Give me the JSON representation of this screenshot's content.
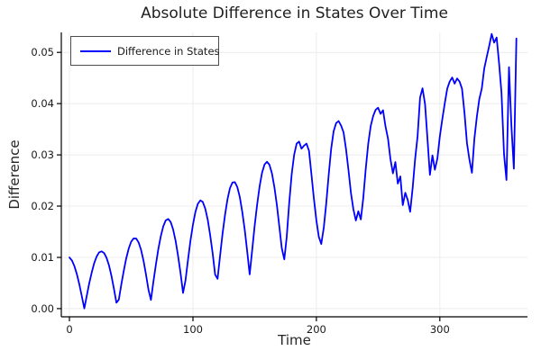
{
  "figure": {
    "title": "Absolute Difference in States Over Time"
  },
  "axes": {
    "x_label": "Time",
    "y_label": "Difference",
    "x_tick_values": [
      0,
      100,
      200,
      300
    ],
    "x_tick_labels": [
      "0",
      "100",
      "200",
      "300"
    ],
    "y_tick_values": [
      0.0,
      0.01,
      0.02,
      0.03,
      0.04,
      0.05
    ],
    "y_tick_labels": [
      "0.00",
      "0.01",
      "0.02",
      "0.03",
      "0.04",
      "0.05"
    ]
  },
  "legend": {
    "label": "Difference in States"
  },
  "colors": {
    "line": "#0000ff",
    "grid": "#ececec",
    "axis": "#000000",
    "text": "#1a1a1a"
  },
  "chart_data": {
    "type": "line",
    "title": "Absolute Difference in States Over Time",
    "xlabel": "Time",
    "ylabel": "Difference",
    "xlim": [
      -6.6,
      371
    ],
    "ylim": [
      -0.0016,
      0.0539
    ],
    "grid": true,
    "legend_position": "top-left",
    "series": [
      {
        "name": "Difference in States",
        "color": "#0000ff",
        "x_start": 0,
        "x_step": 2,
        "values": [
          0.00997,
          0.00939,
          0.00828,
          0.00669,
          0.00472,
          0.00244,
          4e-05,
          0.00248,
          0.00488,
          0.00702,
          0.00883,
          0.01017,
          0.01097,
          0.01117,
          0.01086,
          0.00994,
          0.00843,
          0.00639,
          0.00392,
          0.00116,
          0.00175,
          0.00467,
          0.00741,
          0.0098,
          0.01174,
          0.01306,
          0.0137,
          0.01368,
          0.01292,
          0.0115,
          0.00932,
          0.00668,
          0.00366,
          0.00168,
          0.00521,
          0.00858,
          0.01163,
          0.01418,
          0.01607,
          0.01721,
          0.01749,
          0.0169,
          0.01545,
          0.01319,
          0.01028,
          0.00684,
          0.00306,
          0.00548,
          0.00951,
          0.01322,
          0.01638,
          0.01884,
          0.02045,
          0.02113,
          0.02081,
          0.01953,
          0.01734,
          0.01433,
          0.01071,
          0.00664,
          0.00581,
          0.01035,
          0.0146,
          0.01834,
          0.02134,
          0.02348,
          0.02461,
          0.02468,
          0.0237,
          0.02172,
          0.01886,
          0.01527,
          0.01111,
          0.00667,
          0.01142,
          0.01612,
          0.02032,
          0.02383,
          0.0265,
          0.02813,
          0.02866,
          0.02808,
          0.02639,
          0.02372,
          0.02018,
          0.01602,
          0.0118,
          0.0096,
          0.014,
          0.0205,
          0.0262,
          0.03,
          0.0322,
          0.0326,
          0.0312,
          0.0318,
          0.0322,
          0.0308,
          0.0262,
          0.0215,
          0.0172,
          0.014,
          0.0126,
          0.0158,
          0.0205,
          0.0262,
          0.0312,
          0.0346,
          0.0362,
          0.0366,
          0.0357,
          0.0344,
          0.0312,
          0.027,
          0.0226,
          0.0194,
          0.0172,
          0.019,
          0.0174,
          0.0216,
          0.0272,
          0.0322,
          0.0356,
          0.0376,
          0.0388,
          0.0392,
          0.038,
          0.0387,
          0.0356,
          0.0332,
          0.0292,
          0.0264,
          0.0286,
          0.0244,
          0.0258,
          0.0202,
          0.0226,
          0.0212,
          0.0189,
          0.0236,
          0.0292,
          0.0336,
          0.0412,
          0.043,
          0.0399,
          0.0331,
          0.0261,
          0.0299,
          0.0271,
          0.0293,
          0.0336,
          0.0369,
          0.0401,
          0.0429,
          0.0443,
          0.0451,
          0.0439,
          0.0449,
          0.0443,
          0.0429,
          0.0381,
          0.0323,
          0.0291,
          0.0265,
          0.0331,
          0.0375,
          0.0409,
          0.0429,
          0.0469,
          0.0491,
          0.0513,
          0.0536,
          0.0519,
          0.0529,
          0.0479,
          0.0421,
          0.0301,
          0.0251,
          0.0471,
          0.0356,
          0.0273,
          0.0527
        ]
      }
    ]
  }
}
